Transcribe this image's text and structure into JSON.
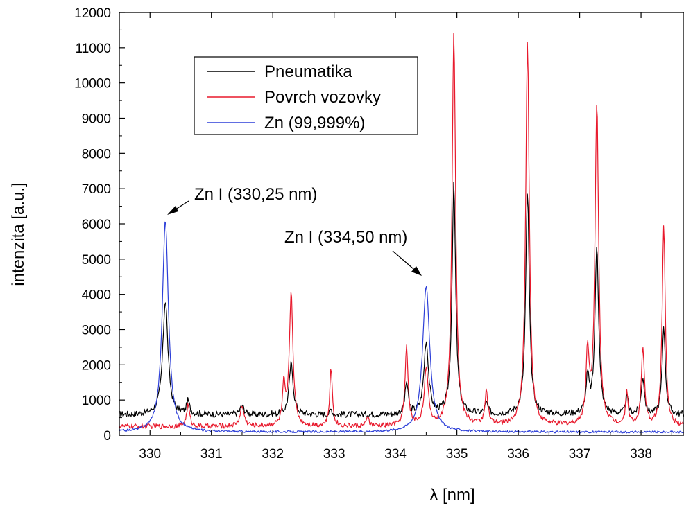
{
  "chart_data": {
    "type": "line",
    "title": "",
    "xlabel": "λ [nm]",
    "ylabel": "intenzita [a.u.]",
    "xlim": [
      329.5,
      338.7
    ],
    "ylim": [
      0,
      12000
    ],
    "x_ticks": [
      "330",
      "331",
      "332",
      "333",
      "334",
      "335",
      "336",
      "337",
      "338"
    ],
    "y_ticks": [
      "0",
      "1000",
      "2000",
      "3000",
      "4000",
      "5000",
      "6000",
      "7000",
      "8000",
      "9000",
      "10000",
      "11000",
      "12000"
    ],
    "grid": false,
    "legend_position": "top-left",
    "series": [
      {
        "name": "Pneumatika",
        "color": "#000000",
        "baseline": 580,
        "noise": 90,
        "peaks": [
          [
            330.25,
            3250,
            0.05
          ],
          [
            330.62,
            350,
            0.03
          ],
          [
            331.5,
            250,
            0.04
          ],
          [
            332.3,
            1450,
            0.04
          ],
          [
            332.95,
            150,
            0.02
          ],
          [
            334.18,
            900,
            0.03
          ],
          [
            334.5,
            2050,
            0.045
          ],
          [
            334.95,
            6500,
            0.035
          ],
          [
            335.48,
            300,
            0.03
          ],
          [
            336.15,
            6300,
            0.035
          ],
          [
            337.13,
            1000,
            0.03
          ],
          [
            337.28,
            4800,
            0.035
          ],
          [
            337.77,
            500,
            0.025
          ],
          [
            338.03,
            1050,
            0.03
          ],
          [
            338.37,
            2550,
            0.03
          ]
        ]
      },
      {
        "name": "Povrch vozovky",
        "color": "#e8192c",
        "baseline": 250,
        "noise": 70,
        "peaks": [
          [
            330.62,
            600,
            0.03
          ],
          [
            331.5,
            550,
            0.04
          ],
          [
            332.18,
            1100,
            0.025
          ],
          [
            332.3,
            3800,
            0.035
          ],
          [
            332.95,
            1650,
            0.025
          ],
          [
            333.55,
            300,
            0.02
          ],
          [
            334.18,
            2200,
            0.03
          ],
          [
            334.5,
            1550,
            0.04
          ],
          [
            334.95,
            11200,
            0.035
          ],
          [
            335.48,
            950,
            0.03
          ],
          [
            336.15,
            10850,
            0.035
          ],
          [
            337.13,
            2000,
            0.03
          ],
          [
            337.28,
            9100,
            0.035
          ],
          [
            337.77,
            950,
            0.025
          ],
          [
            338.03,
            2200,
            0.03
          ],
          [
            338.37,
            5750,
            0.03
          ]
        ]
      },
      {
        "name": "Zn (99,999%)",
        "color": "#2d3fd8",
        "baseline": 90,
        "noise": 30,
        "peaks": [
          [
            330.25,
            6000,
            0.06
          ],
          [
            334.5,
            4150,
            0.07
          ]
        ]
      }
    ],
    "annotations": [
      {
        "text": "Zn I (330,25 nm)",
        "x": 330.25,
        "y": 6150
      },
      {
        "text": "Zn I (334,50 nm)",
        "x": 334.5,
        "y": 4300
      }
    ]
  }
}
